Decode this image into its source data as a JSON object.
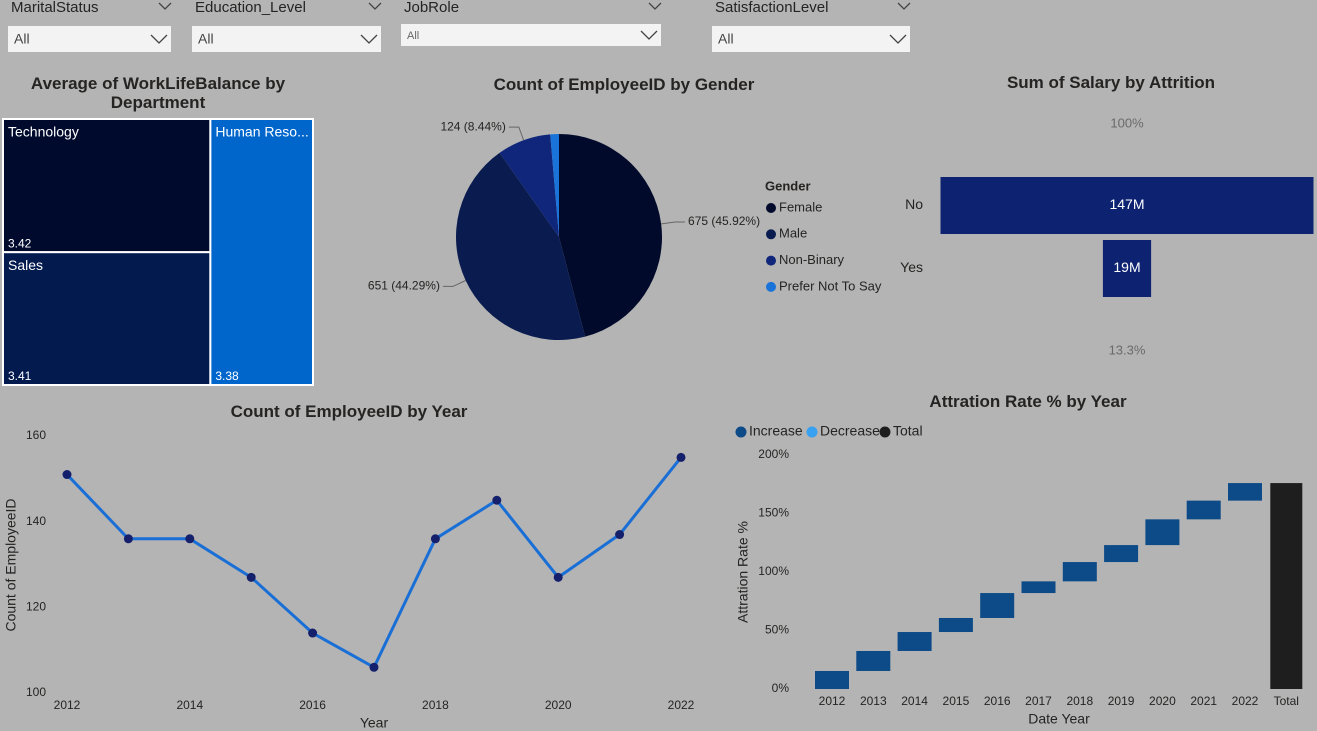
{
  "slicers": [
    {
      "label": "MaritalStatus",
      "value": "All"
    },
    {
      "label": "Education_Level",
      "value": "All"
    },
    {
      "label": "JobRole",
      "value": "All"
    },
    {
      "label": "SatisfactionLevel",
      "value": "All"
    }
  ],
  "chart_data": [
    {
      "type": "treemap",
      "title": "Average of WorkLifeBalance by Department",
      "categories": [
        "Technology",
        "Sales",
        "Human Reso..."
      ],
      "values": [
        3.42,
        3.41,
        3.38
      ],
      "colors": [
        "#000a2c",
        "#031a4f",
        "#0066cc"
      ]
    },
    {
      "type": "pie",
      "title": "Count of EmployeeID by Gender",
      "legend_title": "Gender",
      "categories": [
        "Female",
        "Male",
        "Non-Binary",
        "Prefer Not To Say"
      ],
      "values": [
        675,
        651,
        124,
        20
      ],
      "value_labels": [
        "675 (45.92%)",
        "651 (44.29%)",
        "124 (8.44%)",
        null
      ],
      "colors": [
        "#020a2c",
        "#0a1c4f",
        "#10267a",
        "#1a73d9"
      ]
    },
    {
      "type": "funnel",
      "title": "Sum of Salary by Attrition",
      "categories": [
        "No",
        "Yes"
      ],
      "values": [
        147000000,
        19000000
      ],
      "value_labels": [
        "147M",
        "19M"
      ],
      "color": "#0d2372",
      "top_label": "100%",
      "bottom_label": "13.3%"
    },
    {
      "type": "line",
      "title": "Count of EmployeeID by Year",
      "xlabel": "Year",
      "ylabel": "Count of EmployeeID",
      "x": [
        2012,
        2013,
        2014,
        2015,
        2016,
        2017,
        2018,
        2019,
        2020,
        2021,
        2022
      ],
      "values": [
        151,
        136,
        136,
        127,
        114,
        106,
        136,
        145,
        127,
        137,
        155
      ],
      "xlim": [
        2012,
        2022
      ],
      "ylim": [
        100,
        160
      ],
      "xticks": [
        2012,
        2014,
        2016,
        2018,
        2020,
        2022
      ],
      "yticks": [
        100,
        120,
        140,
        160
      ],
      "color": "#1a6fd6",
      "marker_color": "#14206b"
    },
    {
      "type": "waterfall",
      "title": "Attration Rate % by Year",
      "xlabel": "Date Year",
      "ylabel": "Attration Rate %",
      "categories": [
        "2012",
        "2013",
        "2014",
        "2015",
        "2016",
        "2017",
        "2018",
        "2019",
        "2020",
        "2021",
        "2022",
        "Total"
      ],
      "values": [
        15.4,
        17.1,
        16.2,
        12.0,
        21.3,
        10.0,
        16.5,
        14.5,
        22.0,
        16.0,
        15.0,
        176
      ],
      "ylim": [
        0,
        200
      ],
      "yticks": [
        {
          "value": 0,
          "label": "0%"
        },
        {
          "value": 50,
          "label": "50%"
        },
        {
          "value": 100,
          "label": "100%"
        },
        {
          "value": 150,
          "label": "150%"
        },
        {
          "value": 200,
          "label": "200%"
        }
      ],
      "legend": [
        {
          "name": "Increase",
          "color": "#0c4a88"
        },
        {
          "name": "Decrease",
          "color": "#3aa0f0"
        },
        {
          "name": "Total",
          "color": "#1e1e1e"
        }
      ]
    }
  ]
}
